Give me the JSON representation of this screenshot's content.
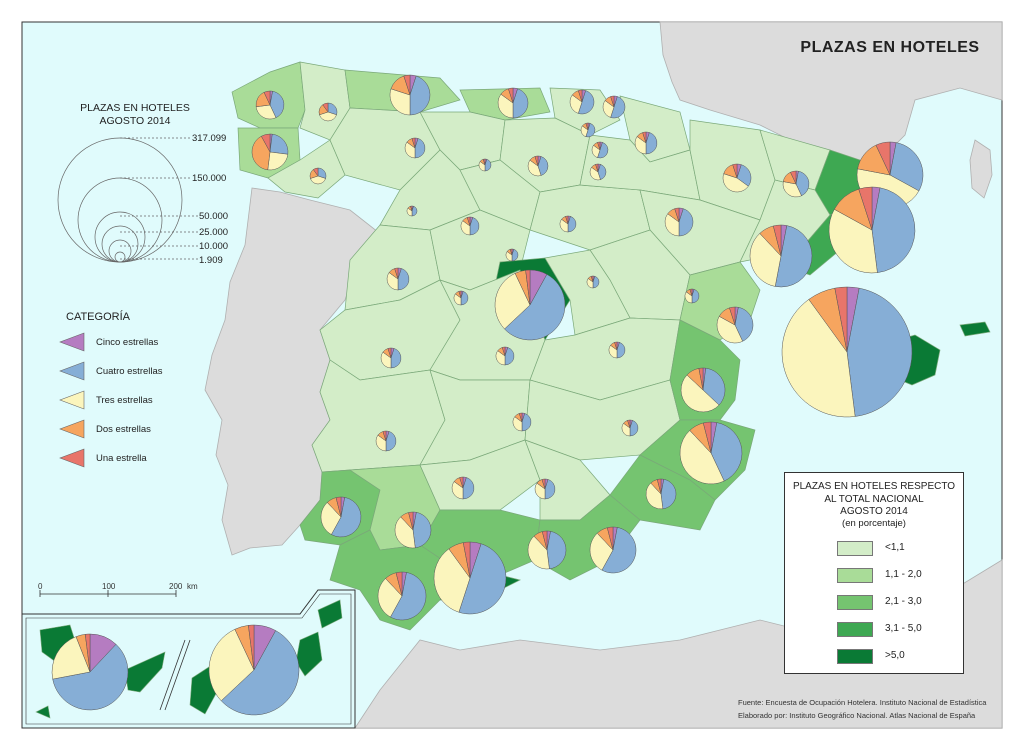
{
  "title": "PLAZAS EN HOTELES",
  "size_legend": {
    "title_line1": "PLAZAS EN HOTELES",
    "title_line2": "AGOSTO 2014",
    "values": [
      "317.099",
      "150.000",
      "50.000",
      "25.000",
      "10.000",
      "1.909"
    ]
  },
  "category_legend": {
    "title": "CATEGORÍA",
    "items": [
      {
        "label": "Cinco estrellas",
        "color": "#b57cc1"
      },
      {
        "label": "Cuatro estrellas",
        "color": "#86aed6"
      },
      {
        "label": "Tres estrellas",
        "color": "#fbf5bd"
      },
      {
        "label": "Dos estrellas",
        "color": "#f6a55f"
      },
      {
        "label": "Una estrella",
        "color": "#e8756a"
      }
    ]
  },
  "share_legend": {
    "title_line1": "PLAZAS EN HOTELES RESPECTO",
    "title_line2": "AL TOTAL NACIONAL",
    "title_line3": "AGOSTO 2014",
    "subtitle": "(en porcentaje)",
    "classes": [
      {
        "label": "<1,1",
        "color": "#d3edc8"
      },
      {
        "label": "1,1 - 2,0",
        "color": "#a9dc98"
      },
      {
        "label": "2,1 - 3,0",
        "color": "#75c470"
      },
      {
        "label": "3,1 - 5,0",
        "color": "#3ea852"
      },
      {
        "label": ">5,0",
        "color": "#0a7a35"
      }
    ]
  },
  "scale_bar": {
    "labels": [
      "0",
      "100",
      "200"
    ],
    "unit": "km"
  },
  "source": {
    "line1": "Fuente: Encuesta de Ocupación Hotelera. Instituto Nacional de Estadística",
    "line2": "Elaborado por: Instituto Geográfico Nacional. Atlas Nacional de España"
  },
  "colors": {
    "sea": "#e0fbfc",
    "foreign_land": "#dcdcdc",
    "border": "#7aa879"
  }
}
